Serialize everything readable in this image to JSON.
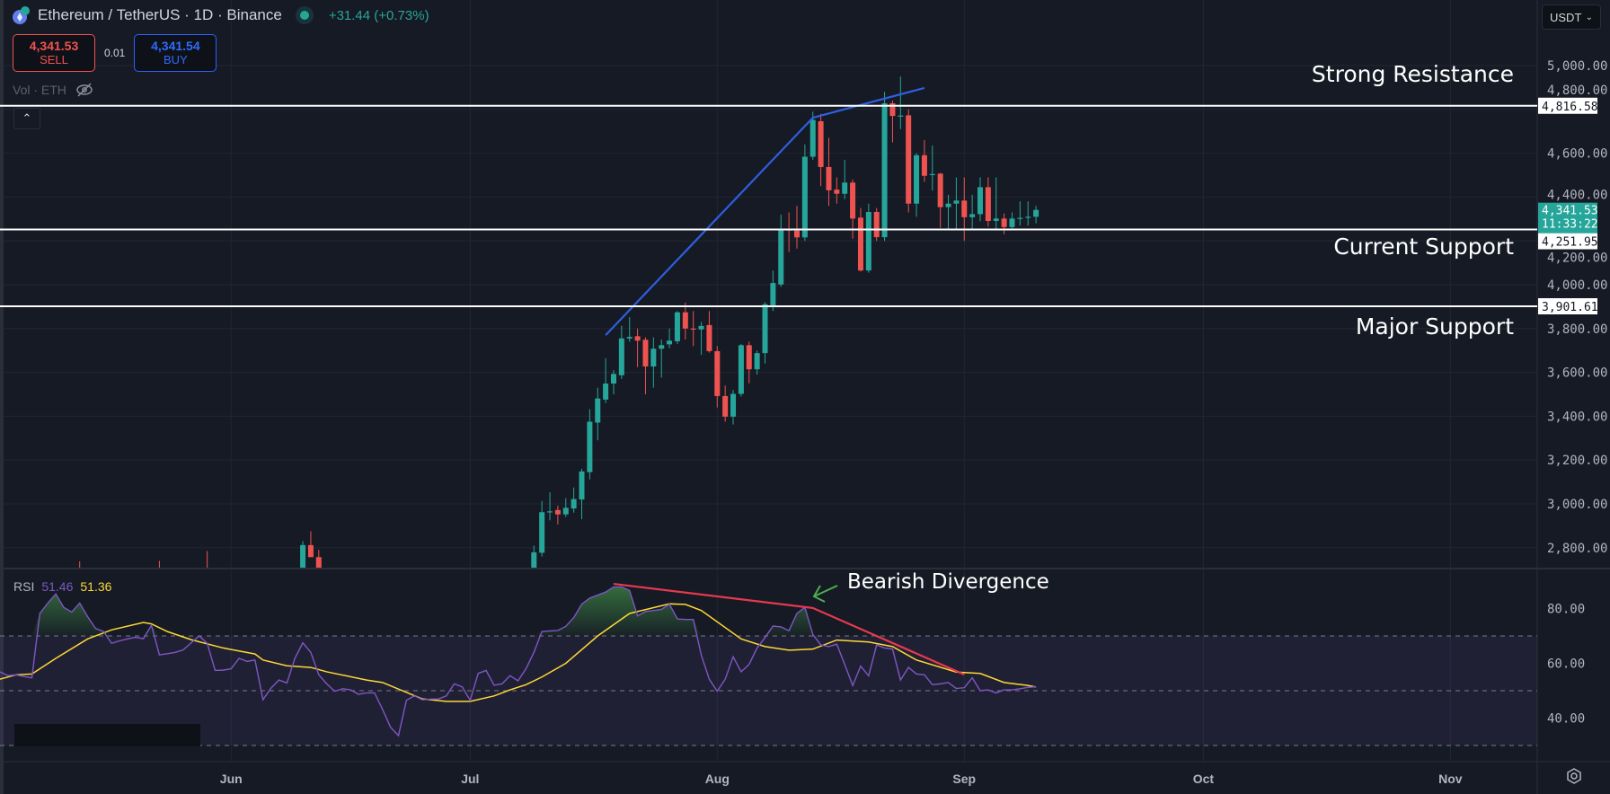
{
  "header": {
    "title": "Ethereum / TetherUS · 1D · Binance",
    "change": "+31.44 (+0.73%)",
    "sell_price": "4,341.53",
    "sell_label": "SELL",
    "spread": "0.01",
    "buy_price": "4,341.54",
    "buy_label": "BUY",
    "volume_label": "Vol · ETH",
    "icons": [
      "eth-icon",
      "live-dot-icon",
      "eye-off-icon",
      "chevron-up-icon",
      "chevron-down-icon",
      "settings-icon"
    ]
  },
  "currency_select": {
    "value": "USDT"
  },
  "colors": {
    "up": "#26a69a",
    "down": "#ef5350",
    "rsi": "#7e57c2",
    "rsi_ma": "#fdd835",
    "trendline": "#2f5fe0",
    "divergence": "#e8384f",
    "background": "#161a25"
  },
  "annotations": {
    "strong_resistance": "Strong Resistance",
    "current_support": "Current Support",
    "major_support": "Major Support",
    "bearish_divergence": "Bearish Divergence"
  },
  "chart_data": [
    {
      "type": "candlestick",
      "title": "Ethereum / TetherUS · 1D · Binance",
      "ylim": [
        2700,
        5130
      ],
      "price_axis": {
        "ticks": [
          "5,000.00",
          "4,800.00",
          "4,600.00",
          "4,400.00",
          "4,200.00",
          "4,000.00",
          "3,800.00",
          "3,600.00",
          "3,400.00",
          "3,200.00",
          "3,000.00",
          "2,800.00"
        ]
      },
      "time_axis": {
        "labels": [
          [
            "06-01",
            "Jun"
          ],
          [
            "07-01",
            "Jul"
          ],
          [
            "08-01",
            "Aug"
          ],
          [
            "09-01",
            "Sep"
          ],
          [
            "10-01",
            "Oct"
          ],
          [
            "11-01",
            "Nov"
          ]
        ]
      },
      "last_price": {
        "value": "4,341.53",
        "countdown": "11:33:22"
      },
      "levels": [
        {
          "price": 4816.58,
          "label": "4,816.58",
          "note": "Strong Resistance"
        },
        {
          "price": 4251.95,
          "label": "4,251.95",
          "note": "Current Support"
        },
        {
          "price": 3901.61,
          "label": "3,901.61",
          "note": "Major Support"
        }
      ],
      "trendline": [
        [
          "07-18",
          3770
        ],
        [
          "08-13",
          4762
        ],
        [
          "08-27",
          4898
        ]
      ],
      "candles_columns": [
        "date",
        "open",
        "high",
        "low",
        "close"
      ],
      "candles": [
        [
          "05-13",
          2700,
          2738,
          2650,
          2690
        ],
        [
          "05-23",
          2690,
          2740,
          2640,
          2680
        ],
        [
          "05-29",
          2700,
          2785,
          2650,
          2690
        ],
        [
          "06-10",
          2650,
          2830,
          2600,
          2812
        ],
        [
          "06-11",
          2812,
          2875,
          2780,
          2757
        ],
        [
          "06-12",
          2757,
          2790,
          2650,
          2680
        ],
        [
          "07-09",
          2600,
          2810,
          2580,
          2779
        ],
        [
          "07-10",
          2777,
          3013,
          2760,
          2962
        ],
        [
          "07-11",
          2962,
          3053,
          2925,
          2966
        ],
        [
          "07-12",
          2972,
          2992,
          2906,
          2952
        ],
        [
          "07-13",
          2952,
          3026,
          2940,
          2982
        ],
        [
          "07-14",
          2979,
          3075,
          2960,
          3022
        ],
        [
          "07-15",
          3020,
          3160,
          2930,
          3148
        ],
        [
          "07-16",
          3145,
          3432,
          3112,
          3375
        ],
        [
          "07-17",
          3371,
          3530,
          3290,
          3481
        ],
        [
          "07-18",
          3476,
          3665,
          3460,
          3549
        ],
        [
          "07-19",
          3549,
          3610,
          3500,
          3593
        ],
        [
          "07-20",
          3587,
          3813,
          3570,
          3755
        ],
        [
          "07-21",
          3755,
          3852,
          3740,
          3762
        ],
        [
          "07-22",
          3765,
          3800,
          3624,
          3745
        ],
        [
          "07-23",
          3749,
          3760,
          3500,
          3627
        ],
        [
          "07-24",
          3627,
          3760,
          3530,
          3708
        ],
        [
          "07-25",
          3708,
          3750,
          3576,
          3724
        ],
        [
          "07-26",
          3728,
          3800,
          3710,
          3745
        ],
        [
          "07-27",
          3742,
          3880,
          3730,
          3874
        ],
        [
          "07-28",
          3874,
          3918,
          3750,
          3800
        ],
        [
          "07-29",
          3800,
          3880,
          3720,
          3798
        ],
        [
          "07-30",
          3796,
          3830,
          3680,
          3812
        ],
        [
          "07-31",
          3816,
          3880,
          3690,
          3697
        ],
        [
          "08-01",
          3697,
          3720,
          3440,
          3492
        ],
        [
          "08-02",
          3492,
          3540,
          3375,
          3398
        ],
        [
          "08-03",
          3398,
          3520,
          3362,
          3502
        ],
        [
          "08-04",
          3502,
          3730,
          3490,
          3724
        ],
        [
          "08-05",
          3724,
          3740,
          3550,
          3614
        ],
        [
          "08-06",
          3614,
          3700,
          3590,
          3688
        ],
        [
          "08-07",
          3688,
          3920,
          3640,
          3911
        ],
        [
          "08-08",
          3905,
          4065,
          3880,
          4008
        ],
        [
          "08-09",
          4001,
          4320,
          3990,
          4254
        ],
        [
          "08-10",
          4254,
          4330,
          4150,
          4247
        ],
        [
          "08-11",
          4247,
          4360,
          4165,
          4216
        ],
        [
          "08-12",
          4216,
          4640,
          4200,
          4584
        ],
        [
          "08-13",
          4584,
          4790,
          4570,
          4752
        ],
        [
          "08-14",
          4746,
          4780,
          4450,
          4537
        ],
        [
          "08-15",
          4537,
          4670,
          4360,
          4431
        ],
        [
          "08-16",
          4434,
          4490,
          4370,
          4415
        ],
        [
          "08-17",
          4415,
          4570,
          4390,
          4466
        ],
        [
          "08-18",
          4466,
          4480,
          4210,
          4302
        ],
        [
          "08-19",
          4306,
          4350,
          4060,
          4065
        ],
        [
          "08-20",
          4065,
          4370,
          4055,
          4332
        ],
        [
          "08-21",
          4332,
          4350,
          4200,
          4217
        ],
        [
          "08-22",
          4217,
          4880,
          4200,
          4828
        ],
        [
          "08-23",
          4828,
          4840,
          4650,
          4770
        ],
        [
          "08-24",
          4770,
          4950,
          4710,
          4772
        ],
        [
          "08-25",
          4773,
          4800,
          4330,
          4370
        ],
        [
          "08-26",
          4370,
          4600,
          4310,
          4591
        ],
        [
          "08-27",
          4591,
          4660,
          4470,
          4497
        ],
        [
          "08-28",
          4502,
          4635,
          4430,
          4505
        ],
        [
          "08-29",
          4507,
          4510,
          4260,
          4354
        ],
        [
          "08-30",
          4354,
          4410,
          4255,
          4370
        ],
        [
          "08-31",
          4370,
          4490,
          4255,
          4384
        ],
        [
          "09-01",
          4384,
          4490,
          4200,
          4308
        ],
        [
          "09-02",
          4308,
          4410,
          4255,
          4322
        ],
        [
          "09-03",
          4322,
          4490,
          4290,
          4445
        ],
        [
          "09-04",
          4445,
          4490,
          4265,
          4291
        ],
        [
          "09-05",
          4291,
          4490,
          4255,
          4302
        ],
        [
          "09-06",
          4302,
          4325,
          4230,
          4263
        ],
        [
          "09-07",
          4263,
          4330,
          4255,
          4302
        ],
        [
          "09-08",
          4302,
          4380,
          4270,
          4305
        ],
        [
          "09-09",
          4306,
          4380,
          4270,
          4310
        ],
        [
          "09-10",
          4310,
          4360,
          4280,
          4341.53
        ]
      ]
    },
    {
      "type": "line",
      "title": "RSI",
      "rsi_value": "51.46",
      "ma_value": "51.36",
      "ylim": [
        20,
        92
      ],
      "ticks": [
        "80.00",
        "60.00",
        "40.00"
      ],
      "bands": [
        70,
        50,
        30
      ],
      "rsi": [
        [
          "05-03",
          56.9
        ],
        [
          "05-04",
          55.5
        ],
        [
          "05-05",
          55.8
        ],
        [
          "05-06",
          55.2
        ],
        [
          "05-07",
          54.7
        ],
        [
          "05-08",
          78.2
        ],
        [
          "05-09",
          82
        ],
        [
          "05-10",
          85.3
        ],
        [
          "05-11",
          80.4
        ],
        [
          "05-12",
          78.7
        ],
        [
          "05-13",
          82
        ],
        [
          "05-14",
          77
        ],
        [
          "05-15",
          72.7
        ],
        [
          "05-16",
          71.6
        ],
        [
          "05-17",
          67.3
        ],
        [
          "05-18",
          68.2
        ],
        [
          "05-19",
          68.9
        ],
        [
          "05-20",
          69.5
        ],
        [
          "05-21",
          69
        ],
        [
          "05-22",
          73.9
        ],
        [
          "05-23",
          63.1
        ],
        [
          "05-24",
          63.5
        ],
        [
          "05-25",
          64
        ],
        [
          "05-26",
          64.9
        ],
        [
          "05-27",
          67.5
        ],
        [
          "05-28",
          70
        ],
        [
          "05-29",
          67.3
        ],
        [
          "05-30",
          57.4
        ],
        [
          "05-31",
          57.5
        ],
        [
          "06-01",
          58
        ],
        [
          "06-02",
          61.8
        ],
        [
          "06-03",
          60.7
        ],
        [
          "06-04",
          61.2
        ],
        [
          "06-05",
          46.7
        ],
        [
          "06-06",
          50.9
        ],
        [
          "06-07",
          53.9
        ],
        [
          "06-08",
          52.8
        ],
        [
          "06-09",
          61.8
        ],
        [
          "06-10",
          67.5
        ],
        [
          "06-11",
          64
        ],
        [
          "06-12",
          55.8
        ],
        [
          "06-13",
          52.5
        ],
        [
          "06-14",
          49.8
        ],
        [
          "06-15",
          50.7
        ],
        [
          "06-16",
          50.3
        ],
        [
          "06-17",
          48.7
        ],
        [
          "06-18",
          49.2
        ],
        [
          "06-19",
          49.2
        ],
        [
          "06-20",
          43.2
        ],
        [
          "06-21",
          36.7
        ],
        [
          "06-22",
          33.6
        ],
        [
          "06-23",
          46.5
        ],
        [
          "06-24",
          48.1
        ],
        [
          "06-25",
          46.7
        ],
        [
          "06-26",
          46.9
        ],
        [
          "06-27",
          47
        ],
        [
          "06-28",
          48.1
        ],
        [
          "06-29",
          52.5
        ],
        [
          "06-30",
          51.4
        ],
        [
          "07-01",
          46.5
        ],
        [
          "07-02",
          56.3
        ],
        [
          "07-03",
          57.4
        ],
        [
          "07-04",
          52
        ],
        [
          "07-05",
          52.5
        ],
        [
          "07-06",
          55.5
        ],
        [
          "07-07",
          53.6
        ],
        [
          "07-08",
          58
        ],
        [
          "07-09",
          64
        ],
        [
          "07-10",
          71.6
        ],
        [
          "07-11",
          71.8
        ],
        [
          "07-12",
          72
        ],
        [
          "07-13",
          73.5
        ],
        [
          "07-14",
          76.7
        ],
        [
          "07-15",
          81.6
        ],
        [
          "07-16",
          83.8
        ],
        [
          "07-17",
          84.9
        ],
        [
          "07-18",
          86
        ],
        [
          "07-19",
          87.9
        ],
        [
          "07-20",
          87.9
        ],
        [
          "07-21",
          86.6
        ],
        [
          "07-22",
          77.3
        ],
        [
          "07-23",
          78.9
        ],
        [
          "07-24",
          79.3
        ],
        [
          "07-25",
          79.7
        ],
        [
          "07-26",
          81.6
        ],
        [
          "07-27",
          76.2
        ],
        [
          "07-28",
          76
        ],
        [
          "07-29",
          76
        ],
        [
          "07-30",
          63
        ],
        [
          "07-31",
          54.2
        ],
        [
          "08-01",
          49.8
        ],
        [
          "08-02",
          54.2
        ],
        [
          "08-03",
          62.4
        ],
        [
          "08-04",
          56.9
        ],
        [
          "08-05",
          59.6
        ],
        [
          "08-06",
          65.6
        ],
        [
          "08-07",
          69.4
        ],
        [
          "08-08",
          73.6
        ],
        [
          "08-09",
          73.3
        ],
        [
          "08-10",
          71.9
        ],
        [
          "08-11",
          78.2
        ],
        [
          "08-12",
          80.4
        ],
        [
          "08-13",
          70.5
        ],
        [
          "08-14",
          66.7
        ],
        [
          "08-15",
          66.1
        ],
        [
          "08-16",
          67
        ],
        [
          "08-17",
          59.6
        ],
        [
          "08-18",
          51.9
        ],
        [
          "08-19",
          59
        ],
        [
          "08-20",
          55.4
        ],
        [
          "08-21",
          66.7
        ],
        [
          "08-22",
          65.6
        ],
        [
          "08-23",
          65.2
        ],
        [
          "08-24",
          53.9
        ],
        [
          "08-25",
          58.5
        ],
        [
          "08-26",
          56.1
        ],
        [
          "08-27",
          55.8
        ],
        [
          "08-28",
          52.2
        ],
        [
          "08-29",
          52.5
        ],
        [
          "08-30",
          53
        ],
        [
          "08-31",
          50.8
        ],
        [
          "09-01",
          51.1
        ],
        [
          "09-02",
          54.7
        ],
        [
          "09-03",
          50
        ],
        [
          "09-04",
          50.3
        ],
        [
          "09-05",
          49.2
        ],
        [
          "09-06",
          50.3
        ],
        [
          "09-07",
          50.3
        ],
        [
          "09-08",
          50.7
        ],
        [
          "09-09",
          51.2
        ],
        [
          "09-10",
          51.46
        ]
      ],
      "rsi_ma": [
        [
          "05-03",
          54.2
        ],
        [
          "05-05",
          55.8
        ],
        [
          "05-07",
          56.1
        ],
        [
          "05-10",
          61.8
        ],
        [
          "05-14",
          68.9
        ],
        [
          "05-17",
          72.2
        ],
        [
          "05-21",
          74.9
        ],
        [
          "05-22",
          74.4
        ],
        [
          "05-24",
          71.6
        ],
        [
          "05-27",
          68.6
        ],
        [
          "05-31",
          65.6
        ],
        [
          "06-04",
          63.4
        ],
        [
          "06-05",
          61.2
        ],
        [
          "06-08",
          59.1
        ],
        [
          "06-11",
          58.5
        ],
        [
          "06-13",
          56.9
        ],
        [
          "06-18",
          53.9
        ],
        [
          "06-20",
          53
        ],
        [
          "06-25",
          47
        ],
        [
          "06-28",
          46.1
        ],
        [
          "07-01",
          46.1
        ],
        [
          "07-04",
          48.1
        ],
        [
          "07-06",
          50.3
        ],
        [
          "07-08",
          52.2
        ],
        [
          "07-10",
          55
        ],
        [
          "07-13",
          60
        ],
        [
          "07-17",
          70
        ],
        [
          "07-21",
          78.2
        ],
        [
          "07-26",
          81.7
        ],
        [
          "07-28",
          81.5
        ],
        [
          "07-30",
          79.3
        ],
        [
          "08-04",
          68.9
        ],
        [
          "08-07",
          66.1
        ],
        [
          "08-10",
          64.8
        ],
        [
          "08-13",
          65.2
        ],
        [
          "08-16",
          68.5
        ],
        [
          "08-20",
          67.8
        ],
        [
          "08-23",
          66.1
        ],
        [
          "08-26",
          61.2
        ],
        [
          "08-31",
          56.8
        ],
        [
          "09-03",
          56.3
        ],
        [
          "09-06",
          53
        ],
        [
          "09-09",
          51.9
        ],
        [
          "09-10",
          51.36
        ]
      ],
      "divergence_line": [
        [
          "07-19",
          89
        ],
        [
          "08-13",
          80.2
        ],
        [
          "09-01",
          55.9
        ]
      ]
    }
  ]
}
